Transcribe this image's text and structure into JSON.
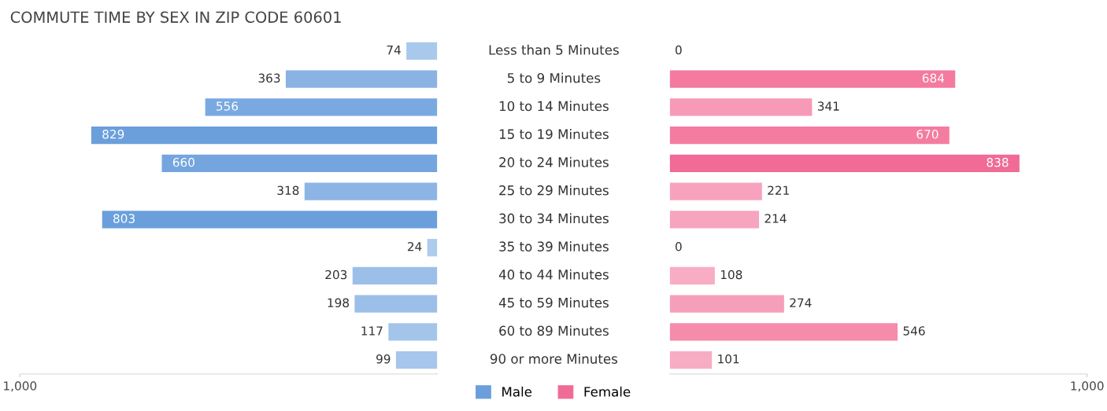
{
  "chart_data": [
    {
      "type": "bar",
      "orientation": "horizontal",
      "title": "COMMUTE TIME BY SEX IN ZIP CODE 60601",
      "categories": [
        "Less than 5 Minutes",
        "5 to 9 Minutes",
        "10 to 14 Minutes",
        "15 to 19 Minutes",
        "20 to 24 Minutes",
        "25 to 29 Minutes",
        "30 to 34 Minutes",
        "35 to 39 Minutes",
        "40 to 44 Minutes",
        "45 to 59 Minutes",
        "60 to 89 Minutes",
        "90 or more Minutes"
      ],
      "series": [
        {
          "name": "Male",
          "color": "#6a9fdc",
          "values": [
            74,
            363,
            556,
            829,
            660,
            318,
            803,
            24,
            203,
            198,
            117,
            99
          ],
          "colors": [
            "#a9c9ec",
            "#8ab3e4",
            "#7aa9e1",
            "#6a9fdc",
            "#74a5df",
            "#8cb5e5",
            "#6a9fdc",
            "#aecced",
            "#9bbfe8",
            "#9bbfe8",
            "#a4c5ea",
            "#a6c6eb"
          ]
        }
      ],
      "xlim": [
        1000,
        0
      ],
      "xticks": [
        {
          "value": 1000,
          "label": "1,000"
        }
      ],
      "data_labels": true,
      "legend": "bottom",
      "grid": false
    },
    {
      "type": "bar",
      "orientation": "horizontal",
      "categories": [
        null,
        null,
        null,
        null,
        null,
        null,
        null,
        null,
        null,
        null,
        null,
        null
      ],
      "series": [
        {
          "name": "Female",
          "color": "#f06b96",
          "values": [
            0,
            684,
            341,
            670,
            838,
            221,
            214,
            0,
            108,
            274,
            546,
            101
          ],
          "colors": [
            "#f9b3c8",
            "#f47a9f",
            "#f69ab7",
            "#f47ca1",
            "#f06b96",
            "#f7a3bd",
            "#f7a4be",
            "#f9b3c8",
            "#f8adc4",
            "#f69fba",
            "#f58cab",
            "#f8acc3"
          ]
        }
      ],
      "xlim": [
        0,
        1000
      ],
      "xticks": [
        {
          "value": 1000,
          "label": "1,000"
        }
      ],
      "tick_labels": "x",
      "data_labels": true,
      "legend": "bottom",
      "grid": false
    }
  ]
}
